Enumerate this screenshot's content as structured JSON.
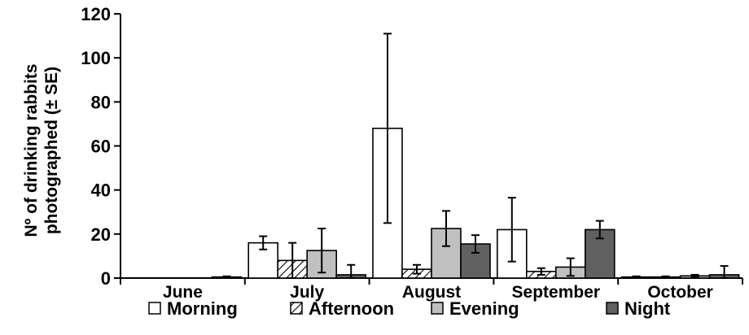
{
  "chart_data": {
    "type": "bar",
    "categories": [
      "June",
      "July",
      "August",
      "September",
      "October"
    ],
    "series": [
      {
        "name": "Morning",
        "color": "#ffffff",
        "pattern": "none",
        "values": [
          0,
          16,
          68,
          22,
          0.5
        ],
        "error": [
          0,
          3,
          43,
          14.5,
          0.3
        ]
      },
      {
        "name": "Afternoon",
        "color": "#ffffff",
        "pattern": "hatch",
        "values": [
          0,
          8,
          4,
          3,
          0.5
        ],
        "error": [
          0,
          8,
          2,
          1.5,
          0.3
        ]
      },
      {
        "name": "Evening",
        "color": "#c0c0c0",
        "pattern": "none",
        "values": [
          0,
          12.5,
          22.5,
          5,
          1
        ],
        "error": [
          0,
          10,
          8,
          4,
          0.5
        ]
      },
      {
        "name": "Night",
        "color": "#606060",
        "pattern": "none",
        "values": [
          0.5,
          1.5,
          15.5,
          22,
          1.5
        ],
        "error": [
          0.3,
          4.5,
          4,
          4,
          4
        ]
      }
    ],
    "ylabel_line1": "Nº of drinking rabbits",
    "ylabel_line2": "photographed (± SE)",
    "ylim": [
      0,
      120
    ],
    "yticks": [
      "0",
      "20",
      "40",
      "60",
      "80",
      "100",
      "120"
    ],
    "legend_position": "bottom",
    "grid": false
  }
}
